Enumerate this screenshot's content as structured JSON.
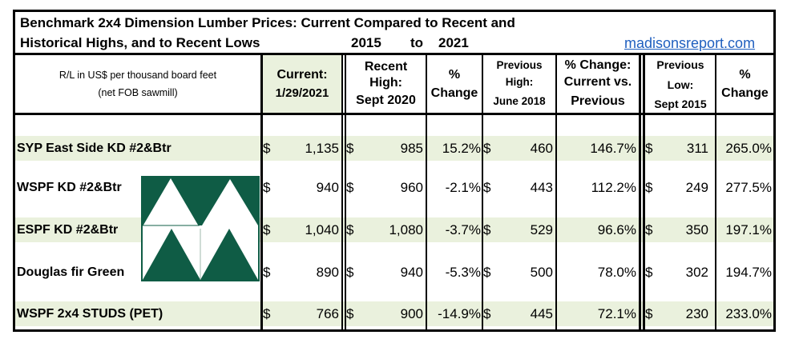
{
  "title": {
    "line1": "Benchmark 2x4 Dimension Lumber Prices: Current Compared to Recent and",
    "line2": "Historical Highs, and to Recent Lows",
    "year_from": "2015",
    "to_word": "to",
    "year_to": "2021"
  },
  "source_link": "madisonsreport.com",
  "header": {
    "desc_line1": "R/L in US$ per thousand board feet",
    "desc_line2": "(net FOB sawmill)",
    "current_line1": "Current:",
    "current_line2": "1/29/2021",
    "recent_high_line1": "Recent",
    "recent_high_line2": "High:",
    "recent_high_line3": "Sept 2020",
    "change1_line1": "%",
    "change1_line2": "Change",
    "prev_high_line1": "Previous",
    "prev_high_line2": "High:",
    "prev_high_line3": "June 2018",
    "change2_line1": "% Change:",
    "change2_line2": "Current vs.",
    "change2_line3": "Previous",
    "prev_low_line1": "Previous",
    "prev_low_line2": "Low:",
    "prev_low_line3": "Sept 2015",
    "change3_line1": "%",
    "change3_line2": "Change"
  },
  "currency_symbol": "$",
  "rows": [
    {
      "label": "SYP East Side KD #2&Btr",
      "current": "1,135",
      "recent_high": "985",
      "change_recent": "15.2%",
      "prev_high": "460",
      "change_prev_high": "146.7%",
      "prev_low": "311",
      "change_prev_low": "265.0%",
      "highlight": true
    },
    {
      "label": "WSPF KD #2&Btr",
      "current": "940",
      "recent_high": "960",
      "change_recent": "-2.1%",
      "prev_high": "443",
      "change_prev_high": "112.2%",
      "prev_low": "249",
      "change_prev_low": "277.5%",
      "highlight": false
    },
    {
      "label": "ESPF KD #2&Btr",
      "current": "1,040",
      "recent_high": "1,080",
      "change_recent": "-3.7%",
      "prev_high": "529",
      "change_prev_high": "96.6%",
      "prev_low": "350",
      "change_prev_low": "197.1%",
      "highlight": true
    },
    {
      "label": "Douglas fir Green",
      "current": "890",
      "recent_high": "940",
      "change_recent": "-5.3%",
      "prev_high": "500",
      "change_prev_high": "78.0%",
      "prev_low": "302",
      "change_prev_low": "194.7%",
      "highlight": false
    },
    {
      "label": "WSPF 2x4 STUDS (PET)",
      "current": "766",
      "recent_high": "900",
      "change_recent": "-14.9%",
      "prev_high": "445",
      "change_prev_high": "72.1%",
      "prev_low": "230",
      "change_prev_low": "233.0%",
      "highlight": true
    }
  ],
  "colors": {
    "highlight_fill": "#eaf1dd",
    "logo_green": "#0f5c45",
    "link_blue": "#1f5fbf"
  }
}
